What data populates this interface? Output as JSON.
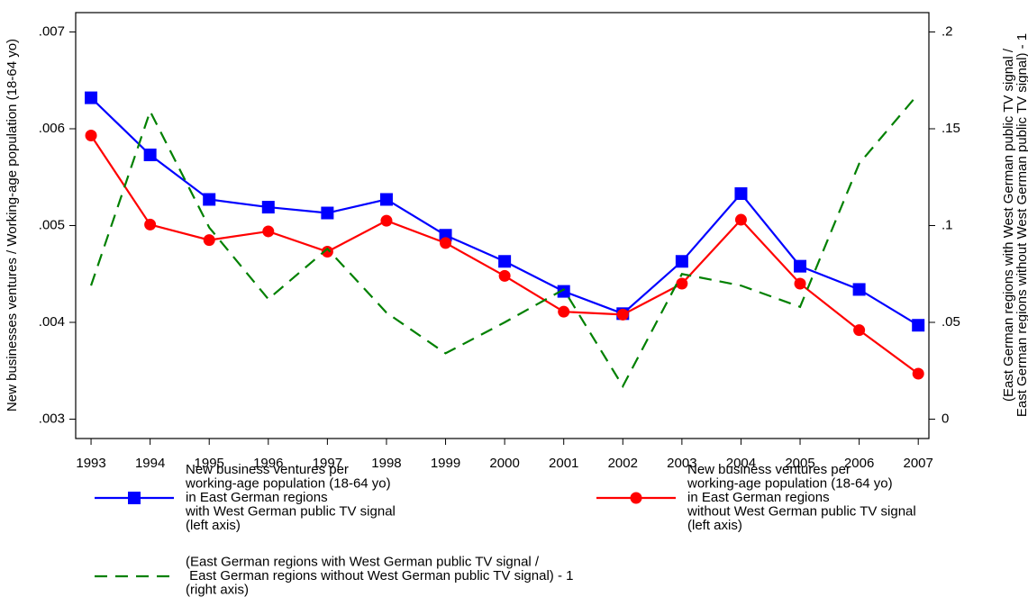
{
  "chart_data": {
    "type": "line",
    "x": [
      1993,
      1994,
      1995,
      1996,
      1997,
      1998,
      1999,
      2000,
      2001,
      2002,
      2003,
      2004,
      2005,
      2006,
      2007
    ],
    "xlim": [
      1992.74,
      2007.18
    ],
    "xticks": [
      1993,
      1994,
      1995,
      1996,
      1997,
      1998,
      1999,
      2000,
      2001,
      2002,
      2003,
      2004,
      2005,
      2006,
      2007
    ],
    "ylim": [
      0.0028,
      0.0072
    ],
    "yticks": [
      {
        "value": 0.003,
        "label": ".003"
      },
      {
        "value": 0.004,
        "label": ".004"
      },
      {
        "value": 0.005,
        "label": ".005"
      },
      {
        "value": 0.006,
        "label": ".006"
      },
      {
        "value": 0.007,
        "label": ".007"
      }
    ],
    "y2lim": [
      -0.01,
      0.21
    ],
    "y2ticks": [
      0,
      {
        "value": 0.05,
        "label": ".05"
      },
      {
        "value": 0.1,
        "label": ".1"
      },
      {
        "value": 0.15,
        "label": ".15"
      },
      {
        "value": 0.2,
        "label": ".2"
      }
    ],
    "ylabel": "New businesses ventures / Working-age population (18-64 yo)",
    "y2label": "(East German regions with West German public TV signal /\nEast German regions without West German public TV signal) - 1",
    "series": [
      {
        "name": "New business ventures per\nworking-age population (18-64 yo)\nin East German regions\nwith West German public TV signal\n(left axis)",
        "color": "#0000ff",
        "marker": "square",
        "values": [
          0.00632,
          0.00573,
          0.00527,
          0.00519,
          0.00513,
          0.00527,
          0.0049,
          0.00463,
          0.00432,
          0.00409,
          0.00463,
          0.00533,
          0.00458,
          0.00434,
          0.00397
        ]
      },
      {
        "name": "New business ventures per\nworking-age population (18-64 yo)\nin East German regions\nwithout West German public TV signal\n(left axis)",
        "color": "#ff0000",
        "marker": "circle",
        "values": [
          0.00593,
          0.00501,
          0.00485,
          0.00494,
          0.00473,
          0.00505,
          0.00482,
          0.00448,
          0.00411,
          0.00408,
          0.0044,
          0.00506,
          0.0044,
          0.00392,
          0.00347
        ]
      },
      {
        "name": "(East German regions with West German public TV signal /\n East German regions without West German public TV signal) - 1\n(right axis)",
        "color": "#008000",
        "dashed": true,
        "axis": "y2",
        "values": [
          0.069,
          0.159,
          0.099,
          0.062,
          0.088,
          0.055,
          0.034,
          0.05,
          0.067,
          0.017,
          0.075,
          0.069,
          0.058,
          0.132,
          0.168
        ]
      }
    ]
  }
}
